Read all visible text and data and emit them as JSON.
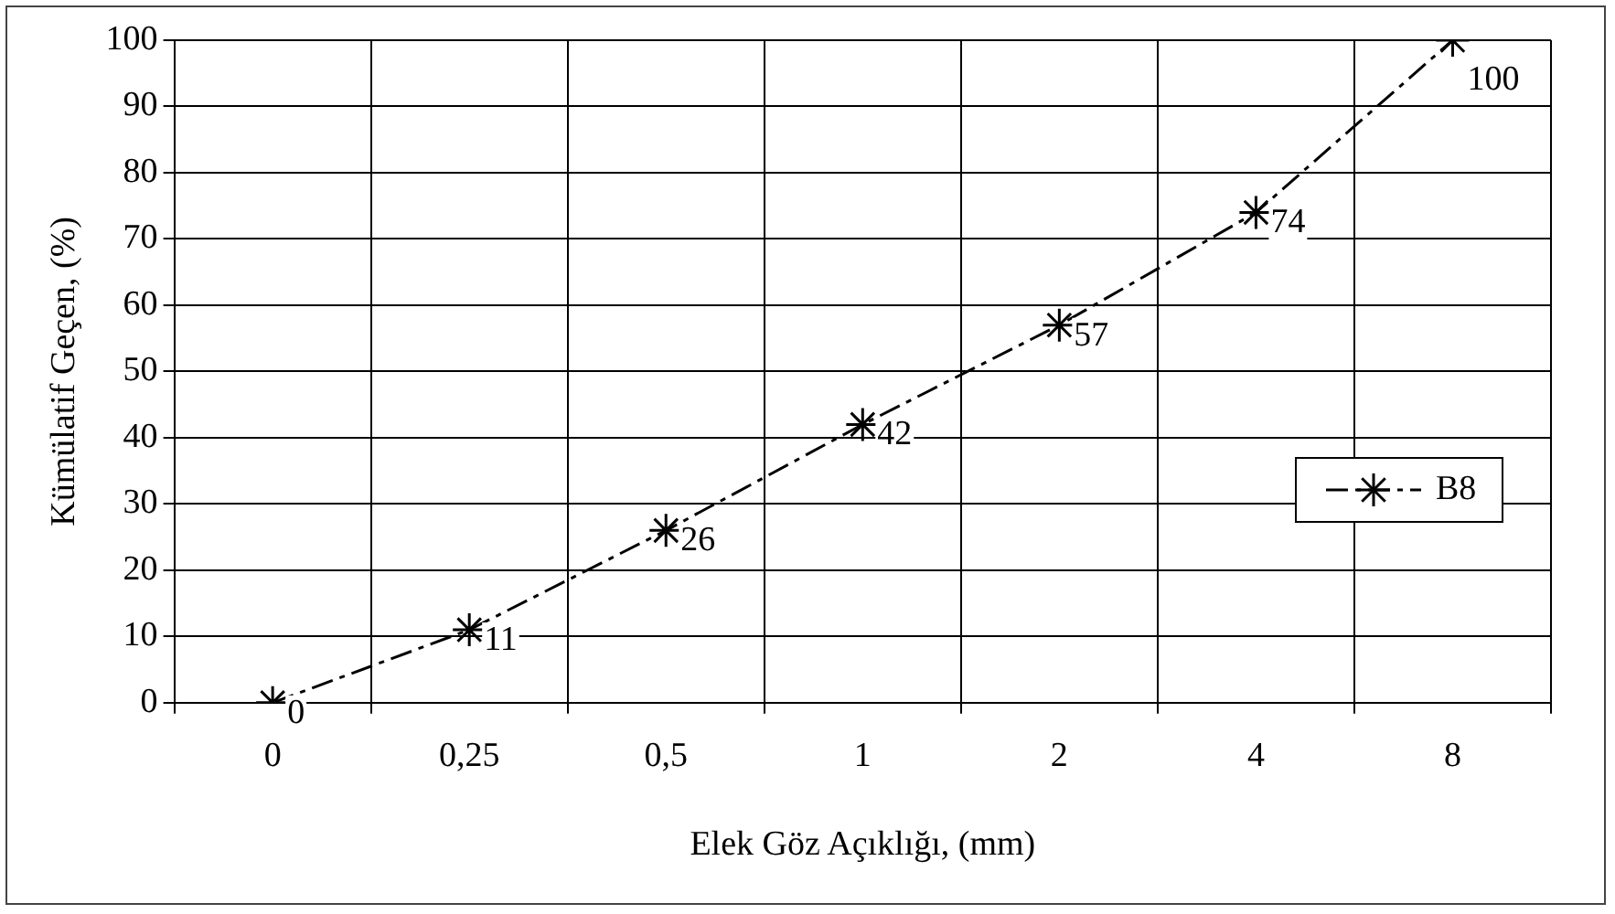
{
  "chart_data": {
    "type": "line",
    "xlabel": "Elek Göz Açıklığı, (mm)",
    "ylabel": "Kümülatif Geçen, (%)",
    "categories": [
      "0",
      "0,25",
      "0,5",
      "1",
      "2",
      "4",
      "8"
    ],
    "series": [
      {
        "name": "B8",
        "color": "#000000",
        "values": [
          0,
          11,
          26,
          42,
          57,
          74,
          100
        ]
      }
    ],
    "ylim": [
      0,
      100
    ],
    "yticks": [
      0,
      10,
      20,
      30,
      40,
      50,
      60,
      70,
      80,
      90,
      100
    ],
    "grid": true,
    "legend": "right",
    "marker": "cross",
    "line_style": "dashed",
    "data_labels": true
  }
}
